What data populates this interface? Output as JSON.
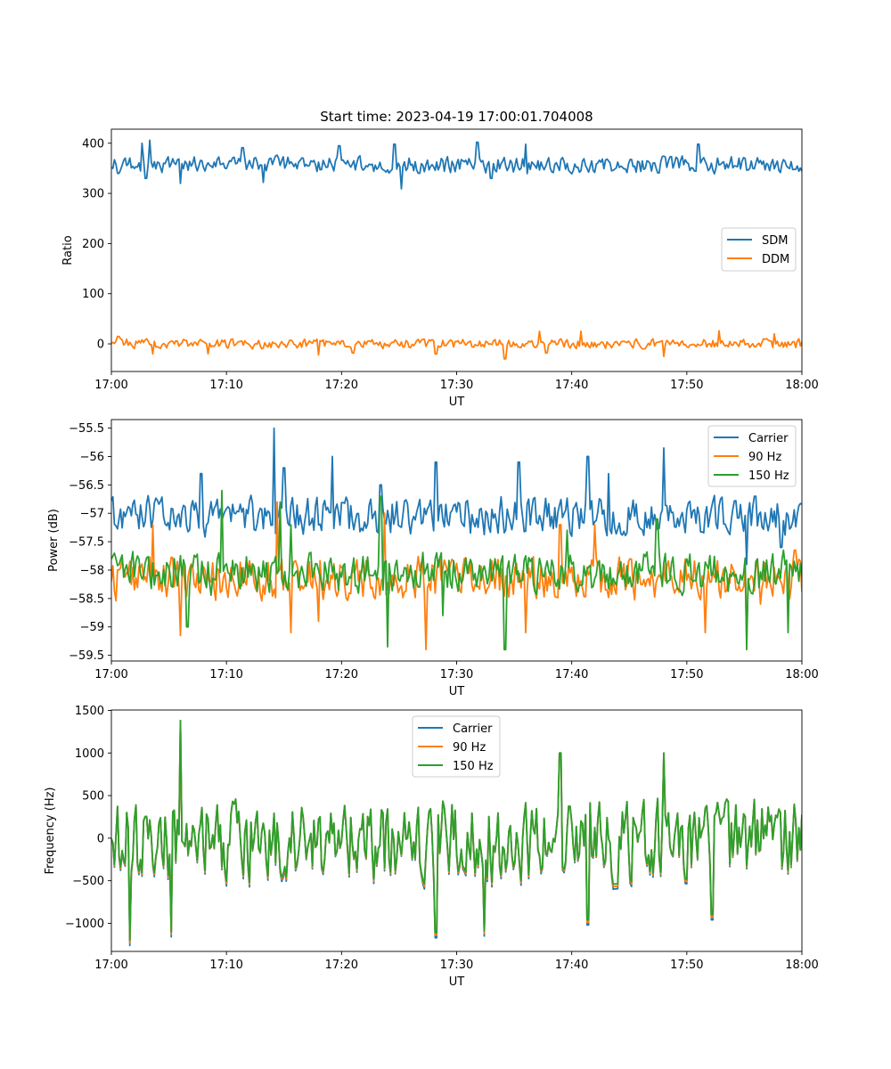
{
  "figure": {
    "title": "Start time: 2023-04-19 17:00:01.704008"
  },
  "colors": {
    "c0": "#1f77b4",
    "c1": "#ff7f0e",
    "c2": "#2ca02c"
  },
  "chart_data": [
    {
      "type": "line",
      "title": "Start time: 2023-04-19 17:00:01.704008",
      "xlabel": "UT",
      "ylabel": "Ratio",
      "x_range": [
        "17:00",
        "18:00"
      ],
      "x_ticks": [
        "17:00",
        "17:10",
        "17:20",
        "17:30",
        "17:40",
        "17:50",
        "18:00"
      ],
      "ylim": [
        -55,
        428
      ],
      "y_ticks": [
        0,
        100,
        200,
        300,
        400
      ],
      "legend": "center-right",
      "grid": false,
      "series": [
        {
          "name": "SDM",
          "color": "#1f77b4",
          "base": 357,
          "amp": 14,
          "seed": 3,
          "spikes": [
            [
              0.01,
              340
            ],
            [
              0.045,
              400
            ],
            [
              0.05,
              330
            ],
            [
              0.055,
              406
            ],
            [
              0.1,
              320
            ],
            [
              0.19,
              391
            ],
            [
              0.22,
              322
            ],
            [
              0.33,
              395
            ],
            [
              0.41,
              398
            ],
            [
              0.42,
              309
            ],
            [
              0.53,
              402
            ],
            [
              0.55,
              330
            ],
            [
              0.6,
              398
            ],
            [
              0.85,
              398
            ],
            [
              0.99,
              348
            ]
          ]
        },
        {
          "name": "DDM",
          "color": "#ff7f0e",
          "base": 0,
          "amp": 8,
          "seed": 7,
          "spikes": [
            [
              0.01,
              15
            ],
            [
              0.06,
              -20
            ],
            [
              0.14,
              -20
            ],
            [
              0.3,
              -22
            ],
            [
              0.35,
              -18
            ],
            [
              0.47,
              -20
            ],
            [
              0.57,
              -30
            ],
            [
              0.62,
              25
            ],
            [
              0.63,
              -18
            ],
            [
              0.68,
              25
            ],
            [
              0.8,
              -25
            ],
            [
              0.88,
              26
            ],
            [
              0.96,
              20
            ]
          ]
        }
      ]
    },
    {
      "type": "line",
      "title": "",
      "xlabel": "UT",
      "ylabel": "Power (dB)",
      "x_range": [
        "17:00",
        "18:00"
      ],
      "x_ticks": [
        "17:00",
        "17:10",
        "17:20",
        "17:30",
        "17:40",
        "17:50",
        "18:00"
      ],
      "ylim": [
        -59.6,
        -55.35
      ],
      "y_ticks": [
        -59.5,
        -59.0,
        -58.5,
        -58.0,
        -57.5,
        -57.0,
        -56.5,
        -56.0,
        -55.5
      ],
      "legend": "top-right",
      "grid": false,
      "series": [
        {
          "name": "Carrier",
          "color": "#1f77b4",
          "base": -57.05,
          "amp": 0.28,
          "seed": 11,
          "spikes": [
            [
              0.13,
              -56.3
            ],
            [
              0.235,
              -55.5
            ],
            [
              0.25,
              -56.2
            ],
            [
              0.32,
              -56.0
            ],
            [
              0.39,
              -56.5
            ],
            [
              0.47,
              -56.1
            ],
            [
              0.59,
              -56.1
            ],
            [
              0.69,
              -56.0
            ],
            [
              0.72,
              -56.3
            ],
            [
              0.8,
              -55.85
            ],
            [
              0.92,
              -57.9
            ],
            [
              0.97,
              -57.6
            ]
          ]
        },
        {
          "name": "90 Hz",
          "color": "#ff7f0e",
          "base": -58.15,
          "amp": 0.3,
          "seed": 17,
          "spikes": [
            [
              0.06,
              -57.2
            ],
            [
              0.1,
              -59.15
            ],
            [
              0.24,
              -56.8
            ],
            [
              0.26,
              -59.1
            ],
            [
              0.3,
              -58.9
            ],
            [
              0.395,
              -57.0
            ],
            [
              0.455,
              -59.4
            ],
            [
              0.6,
              -59.1
            ],
            [
              0.65,
              -57.2
            ],
            [
              0.7,
              -57.2
            ],
            [
              0.81,
              -58.1
            ],
            [
              0.86,
              -59.1
            ],
            [
              0.92,
              -59.25
            ],
            [
              0.94,
              -58.6
            ],
            [
              0.99,
              -57.65
            ]
          ]
        },
        {
          "name": "150 Hz",
          "color": "#2ca02c",
          "base": -58.05,
          "amp": 0.3,
          "seed": 23,
          "spikes": [
            [
              0.11,
              -59.0
            ],
            [
              0.16,
              -56.6
            ],
            [
              0.245,
              -56.8
            ],
            [
              0.26,
              -57.2
            ],
            [
              0.39,
              -56.7
            ],
            [
              0.4,
              -59.35
            ],
            [
              0.48,
              -58.8
            ],
            [
              0.57,
              -59.4
            ],
            [
              0.66,
              -57.3
            ],
            [
              0.79,
              -57.1
            ],
            [
              0.92,
              -59.4
            ],
            [
              0.98,
              -59.1
            ]
          ]
        }
      ]
    },
    {
      "type": "line",
      "title": "",
      "xlabel": "UT",
      "ylabel": "Frequency (Hz)",
      "x_range": [
        "17:00",
        "18:00"
      ],
      "x_ticks": [
        "17:00",
        "17:10",
        "17:20",
        "17:30",
        "17:40",
        "17:50",
        "18:00"
      ],
      "ylim": [
        -1330,
        1505
      ],
      "y_ticks": [
        -1000,
        -500,
        0,
        500,
        1000,
        1500
      ],
      "legend": "top-center",
      "grid": false,
      "series": [
        {
          "name": "Carrier",
          "color": "#1f77b4",
          "base": -20,
          "amp": 380,
          "seed": 31,
          "offset": -60,
          "spikes": [
            [
              0.027,
              -1200
            ],
            [
              0.086,
              -1100
            ],
            [
              0.1,
              1380
            ],
            [
              0.47,
              -1110
            ],
            [
              0.54,
              -1090
            ],
            [
              0.65,
              1000
            ],
            [
              0.69,
              -960
            ],
            [
              0.8,
              1000
            ],
            [
              0.87,
              -900
            ]
          ]
        },
        {
          "name": "90 Hz",
          "color": "#ff7f0e",
          "base": -20,
          "amp": 380,
          "seed": 31,
          "offset": -30,
          "spikes": [
            [
              0.027,
              -1200
            ],
            [
              0.086,
              -1100
            ],
            [
              0.1,
              1380
            ],
            [
              0.47,
              -1110
            ],
            [
              0.54,
              -1090
            ],
            [
              0.65,
              1000
            ],
            [
              0.69,
              -960
            ],
            [
              0.8,
              1000
            ],
            [
              0.87,
              -900
            ]
          ]
        },
        {
          "name": "150 Hz",
          "color": "#2ca02c",
          "base": -20,
          "amp": 380,
          "seed": 31,
          "offset": 0,
          "spikes": [
            [
              0.027,
              -1200
            ],
            [
              0.086,
              -1100
            ],
            [
              0.1,
              1380
            ],
            [
              0.47,
              -1110
            ],
            [
              0.54,
              -1090
            ],
            [
              0.65,
              1000
            ],
            [
              0.69,
              -960
            ],
            [
              0.8,
              1000
            ],
            [
              0.87,
              -900
            ]
          ]
        }
      ]
    }
  ]
}
